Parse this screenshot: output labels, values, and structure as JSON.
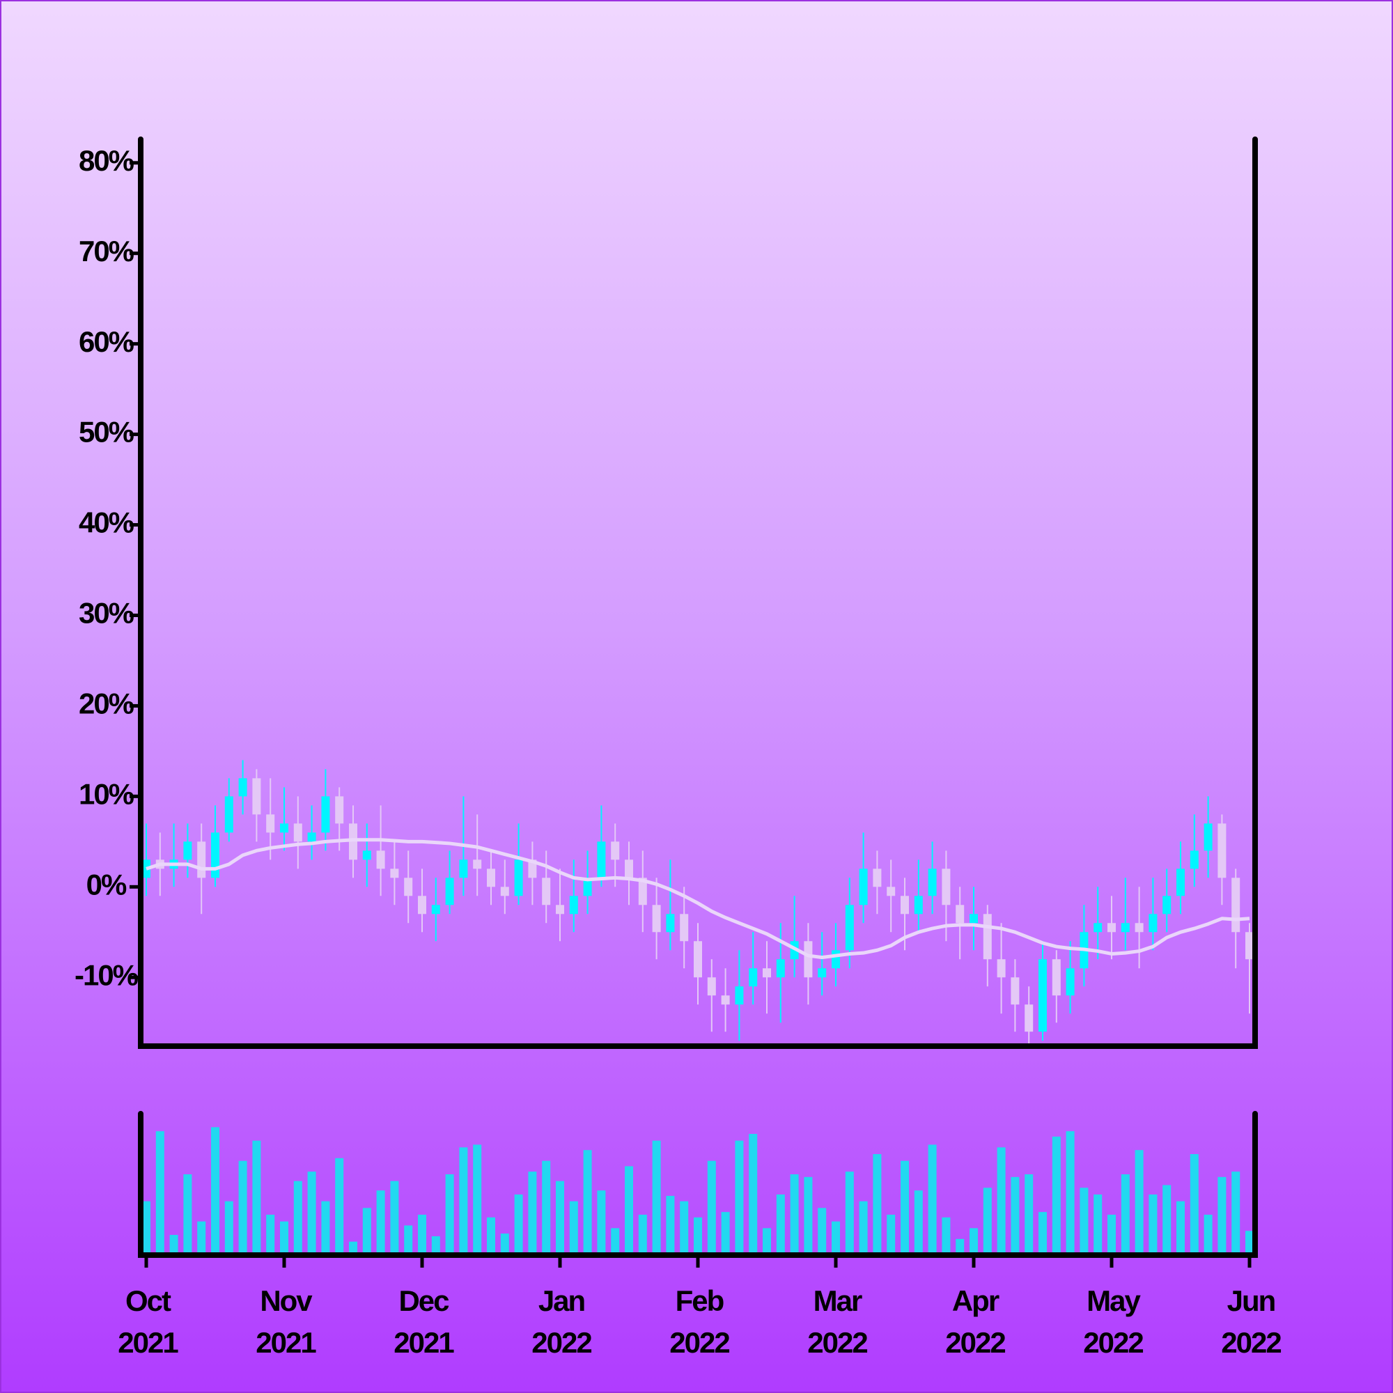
{
  "chart_data": {
    "type": "candlestick",
    "categories": [
      "Oct\n2021",
      null,
      null,
      null,
      null,
      null,
      null,
      null,
      null,
      null,
      "Nov\n2021",
      null,
      null,
      null,
      null,
      null,
      null,
      null,
      null,
      null,
      "Dec\n2021",
      null,
      null,
      null,
      null,
      null,
      null,
      null,
      null,
      null,
      "Jan\n2022",
      null,
      null,
      null,
      null,
      null,
      null,
      null,
      null,
      null,
      "Feb\n2022",
      null,
      null,
      null,
      null,
      null,
      null,
      null,
      null,
      null,
      "Mar\n2022",
      null,
      null,
      null,
      null,
      null,
      null,
      null,
      null,
      null,
      "Apr\n2022",
      null,
      null,
      null,
      null,
      null,
      null,
      null,
      null,
      null,
      "May\n2022",
      null,
      null,
      null,
      null,
      null,
      null,
      null,
      null,
      null,
      "Jun\n2022"
    ],
    "open": [
      1,
      3,
      2,
      3,
      5,
      1,
      6,
      10,
      12,
      8,
      6,
      7,
      5,
      6,
      10,
      7,
      3,
      4,
      2,
      1,
      -1,
      -3,
      -2,
      1,
      3,
      2,
      0,
      -1,
      3,
      1,
      -2,
      -3,
      -1,
      1,
      5,
      3,
      1,
      -2,
      -5,
      -3,
      -6,
      -10,
      -12,
      -13,
      -11,
      -9,
      -10,
      -8,
      -6,
      -10,
      -9,
      -7,
      -2,
      2,
      0,
      -1,
      -3,
      -1,
      2,
      -2,
      -4,
      -3,
      -8,
      -10,
      -13,
      -16,
      -8,
      -12,
      -9,
      -5,
      -4,
      -5,
      -4,
      -5,
      -3,
      -1,
      2,
      4,
      7,
      1,
      -5
    ],
    "high": [
      7,
      6,
      7,
      7,
      7,
      9,
      12,
      14,
      13,
      12,
      11,
      10,
      9,
      13,
      11,
      9,
      7,
      9,
      5,
      4,
      2,
      1,
      4,
      10,
      8,
      4,
      3,
      7,
      5,
      4,
      2,
      3,
      4,
      9,
      7,
      5,
      4,
      1,
      3,
      0,
      -4,
      -8,
      -9,
      -7,
      -5,
      -6,
      -4,
      -1,
      -4,
      -5,
      -4,
      1,
      6,
      4,
      3,
      1,
      3,
      5,
      4,
      0,
      0,
      -2,
      -4,
      -8,
      -11,
      -6,
      -7,
      -6,
      -2,
      0,
      -1,
      1,
      0,
      1,
      2,
      5,
      8,
      10,
      8,
      2,
      -4
    ],
    "low": [
      -1,
      -1,
      0,
      1,
      -3,
      0,
      5,
      8,
      5,
      3,
      4,
      2,
      3,
      4,
      4,
      1,
      0,
      -1,
      -2,
      -4,
      -5,
      -6,
      -3,
      -1,
      -1,
      -2,
      -3,
      -2,
      -2,
      -4,
      -6,
      -5,
      -3,
      0,
      0,
      -2,
      -5,
      -8,
      -7,
      -9,
      -13,
      -16,
      -16,
      -17,
      -13,
      -14,
      -15,
      -10,
      -13,
      -12,
      -11,
      -9,
      -4,
      -3,
      -5,
      -7,
      -5,
      -3,
      -6,
      -8,
      -7,
      -11,
      -14,
      -16,
      -17.5,
      -17,
      -15,
      -14,
      -11,
      -8,
      -8,
      -7,
      -9,
      -7,
      -5,
      -3,
      0,
      1,
      -2,
      -9,
      -14
    ],
    "close": [
      3,
      2,
      3,
      5,
      1,
      6,
      10,
      12,
      8,
      6,
      7,
      5,
      6,
      10,
      7,
      3,
      4,
      2,
      1,
      -1,
      -3,
      -2,
      1,
      3,
      2,
      0,
      -1,
      3,
      1,
      -2,
      -3,
      -1,
      1,
      5,
      3,
      1,
      -2,
      -5,
      -3,
      -6,
      -10,
      -12,
      -13,
      -11,
      -9,
      -10,
      -8,
      -6,
      -10,
      -9,
      -7,
      -2,
      2,
      0,
      -1,
      -3,
      -1,
      2,
      -2,
      -4,
      -3,
      -8,
      -10,
      -13,
      -16,
      -8,
      -12,
      -9,
      -5,
      -4,
      -5,
      -4,
      -5,
      -3,
      -1,
      2,
      4,
      7,
      1,
      -5,
      -8
    ],
    "up_color": "#00f5ff",
    "down_color": "#e4c8f6",
    "moving_average": {
      "color": "#ead6fa",
      "values": [
        2,
        2.5,
        2.5,
        2.5,
        2,
        2,
        2.5,
        3.5,
        4,
        4.3,
        4.5,
        4.7,
        4.8,
        5,
        5.1,
        5.2,
        5.2,
        5.2,
        5.1,
        5,
        5,
        4.9,
        4.8,
        4.6,
        4.4,
        4,
        3.6,
        3.2,
        2.8,
        2.3,
        1.6,
        1,
        0.8,
        0.9,
        1,
        0.9,
        0.7,
        0.3,
        -0.3,
        -1,
        -1.8,
        -2.7,
        -3.4,
        -4,
        -4.6,
        -5.2,
        -6,
        -6.8,
        -7.6,
        -7.8,
        -7.6,
        -7.4,
        -7.3,
        -7,
        -6.5,
        -5.6,
        -5,
        -4.6,
        -4.3,
        -4.2,
        -4.2,
        -4.4,
        -4.6,
        -5,
        -5.6,
        -6.2,
        -6.6,
        -6.8,
        -6.9,
        -7.1,
        -7.4,
        -7.3,
        -7.1,
        -6.6,
        -5.6,
        -5,
        -4.6,
        -4.1,
        -3.5,
        -3.6,
        -3.5
      ]
    },
    "volume": {
      "color": "#22d8f0",
      "ylim": [
        0,
        105
      ],
      "values": [
        40,
        92,
        15,
        60,
        25,
        95,
        40,
        70,
        85,
        30,
        25,
        55,
        62,
        40,
        72,
        10,
        35,
        48,
        55,
        22,
        30,
        14,
        60,
        80,
        82,
        28,
        16,
        45,
        62,
        70,
        55,
        40,
        78,
        48,
        20,
        66,
        30,
        85,
        44,
        40,
        28,
        70,
        32,
        85,
        90,
        20,
        45,
        60,
        58,
        35,
        25,
        62,
        40,
        75,
        30,
        70,
        48,
        82,
        28,
        12,
        20,
        50,
        80,
        58,
        60,
        32,
        88,
        92,
        50,
        45,
        30,
        60,
        78,
        45,
        52,
        40,
        75,
        30,
        58,
        62,
        18
      ]
    },
    "ylim": [
      -17.6,
      82.6
    ],
    "yticks": [
      {
        "value": -10,
        "label": "-10%"
      },
      {
        "value": 0,
        "label": "0%"
      },
      {
        "value": 10,
        "label": "10%"
      },
      {
        "value": 20,
        "label": "20%"
      },
      {
        "value": 30,
        "label": "30%"
      },
      {
        "value": 40,
        "label": "40%"
      },
      {
        "value": 50,
        "label": "50%"
      },
      {
        "value": 60,
        "label": "60%"
      },
      {
        "value": 70,
        "label": "70%"
      },
      {
        "value": 80,
        "label": "80%"
      }
    ]
  }
}
